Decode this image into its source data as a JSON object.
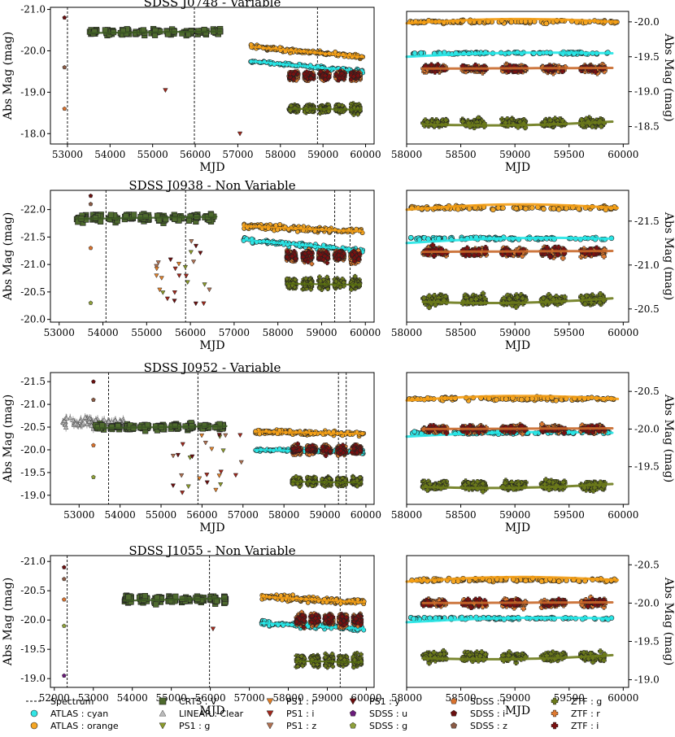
{
  "legend": [
    {
      "label": "Spectrum",
      "marker": "dashed",
      "color": "#000000"
    },
    {
      "label": "ATLAS : cyan",
      "marker": "circle",
      "color": "#33e6e6"
    },
    {
      "label": "ATLAS : orange",
      "marker": "circle",
      "color": "#f5a623"
    },
    {
      "label": "CRTS : V",
      "marker": "square",
      "color": "#4e6a2e"
    },
    {
      "label": "LINEAR : Clear",
      "marker": "triangle-up",
      "color": "#bbbbbb"
    },
    {
      "label": "PS1 : g",
      "marker": "triangle-down",
      "color": "#8b9a2a"
    },
    {
      "label": "PS1 : r",
      "marker": "triangle-down",
      "color": "#e0802a"
    },
    {
      "label": "PS1 : i",
      "marker": "triangle-down",
      "color": "#a0281c"
    },
    {
      "label": "PS1 : z",
      "marker": "triangle-down",
      "color": "#b07050"
    },
    {
      "label": "PS1 : y",
      "marker": "triangle-down",
      "color": "#6a0d0d"
    },
    {
      "label": "SDSS : u",
      "marker": "pentagon",
      "color": "#6a1b7a"
    },
    {
      "label": "SDSS : g",
      "marker": "pentagon",
      "color": "#8ea03a"
    },
    {
      "label": "SDSS : r",
      "marker": "pentagon",
      "color": "#d8722e"
    },
    {
      "label": "SDSS : i",
      "marker": "pentagon",
      "color": "#6a1010"
    },
    {
      "label": "SDSS : z",
      "marker": "pentagon",
      "color": "#8a5a44"
    },
    {
      "label": "ZTF : g",
      "marker": "plus",
      "color": "#6b7a1a"
    },
    {
      "label": "ZTF : r",
      "marker": "plus",
      "color": "#e07a30"
    },
    {
      "label": "ZTF : i",
      "marker": "plus",
      "color": "#7a1010"
    }
  ],
  "chart_data": [
    {
      "type": "scatter",
      "title": "SDSS J0748 - Variable",
      "left": {
        "xlabel": "MJD",
        "ylabel": "Abs Mag (mag)",
        "xlim": [
          52600,
          60200
        ],
        "ylim": [
          -17.75,
          -21.05
        ],
        "xticks": [
          53000,
          54000,
          55000,
          56000,
          57000,
          58000,
          59000,
          60000
        ],
        "yticks": [
          -18.0,
          -19.0,
          -20.0,
          -21.0
        ],
        "spectra": [
          53000,
          55980,
          58870
        ],
        "sdss": [
          52930,
          -20.8,
          -19.6,
          -18.6
        ],
        "crts": {
          "x0": 53500,
          "x1": 56600,
          "level": -20.45
        },
        "ps1": [
          [
            55300,
            -19.05,
            "PS1 : i"
          ],
          [
            57050,
            -18.0,
            "PS1 : i"
          ]
        ],
        "atlas_orange": {
          "x0": 57300,
          "x1": 59950,
          "y0": -20.1,
          "y1": -19.85
        },
        "atlas_cyan": {
          "x0": 57300,
          "x1": 59950,
          "y0": -19.75,
          "y1": -19.5
        },
        "ztf_r": {
          "x0": 58200,
          "x1": 59900,
          "level": -19.4
        },
        "ztf_g": {
          "x0": 58200,
          "x1": 59900,
          "level": -18.6
        }
      },
      "right": {
        "xlabel": "MJD",
        "ylabel": "Abs Mag (mag)",
        "xlim": [
          58000,
          60050
        ],
        "ylim": [
          -18.25,
          -20.15
        ],
        "xticks": [
          58000,
          58500,
          59000,
          59500,
          60000
        ],
        "yticks": [
          -18.5,
          -19.0,
          -19.5,
          -20.0
        ],
        "ztf_g": -18.55,
        "ztf_r": -19.33,
        "atlas_cyan": -19.55,
        "atlas_orange": -20.0
      }
    },
    {
      "type": "scatter",
      "title": "SDSS J0938 - Non Variable",
      "left": {
        "xlabel": "MJD",
        "ylabel": "Abs Mag (mag)",
        "xlim": [
          52800,
          60200
        ],
        "ylim": [
          -19.95,
          -22.35
        ],
        "xticks": [
          53000,
          54000,
          55000,
          56000,
          57000,
          58000,
          59000,
          60000
        ],
        "yticks": [
          -20.0,
          -20.5,
          -21.0,
          -21.5,
          -22.0
        ],
        "spectra": [
          54070,
          55890,
          59300,
          59650
        ],
        "sdss": [
          53720,
          -22.25,
          -22.1,
          -21.3,
          -20.3
        ],
        "crts": {
          "x0": 53400,
          "x1": 56600,
          "level": -21.85
        },
        "ps1_range": [
          55200,
          56500,
          -21.5,
          -20.2
        ],
        "atlas_orange": {
          "x0": 57200,
          "x1": 59950,
          "y0": -21.7,
          "y1": -21.6
        },
        "atlas_cyan": {
          "x0": 57200,
          "x1": 59950,
          "y0": -21.45,
          "y1": -21.25
        },
        "ztf_r": {
          "x0": 58200,
          "x1": 59900,
          "level": -21.15
        },
        "ztf_g": {
          "x0": 58200,
          "x1": 59900,
          "level": -20.65
        }
      },
      "right": {
        "xlabel": "MJD",
        "ylabel": "Abs Mag (mag)",
        "xlim": [
          58000,
          60050
        ],
        "ylim": [
          -20.35,
          -21.85
        ],
        "xticks": [
          58000,
          58500,
          59000,
          59500,
          60000
        ],
        "yticks": [
          -20.5,
          -21.0,
          -21.5
        ],
        "ztf_g": -20.6,
        "ztf_r": -21.15,
        "atlas_cyan": -21.3,
        "atlas_orange": -21.65
      }
    },
    {
      "type": "scatter",
      "title": "SDSS J0952 - Variable",
      "left": {
        "xlabel": "MJD",
        "ylabel": "Abs Mag (mag)",
        "xlim": [
          52300,
          60200
        ],
        "ylim": [
          -18.8,
          -21.7
        ],
        "xticks": [
          53000,
          54000,
          55000,
          56000,
          57000,
          58000,
          59000,
          60000
        ],
        "yticks": [
          -19.0,
          -19.5,
          -20.0,
          -20.5,
          -21.0,
          -21.5
        ],
        "spectra": [
          53720,
          55900,
          59330,
          59520
        ],
        "sdss": [
          53350,
          -21.5,
          -21.1,
          -20.1,
          -19.4
        ],
        "linear": {
          "x0": 52600,
          "x1": 54100,
          "level": -20.6
        },
        "crts": {
          "x0": 53400,
          "x1": 56600,
          "level": -20.5
        },
        "ps1_range": [
          55200,
          57000,
          -20.4,
          -19.0
        ],
        "atlas_orange": {
          "x0": 57300,
          "x1": 59950,
          "y0": -20.4,
          "y1": -20.35
        },
        "atlas_cyan": {
          "x0": 57300,
          "x1": 59950,
          "y0": -20.0,
          "y1": -19.95
        },
        "ztf_r": {
          "x0": 58200,
          "x1": 59900,
          "level": -20.0
        },
        "ztf_g": {
          "x0": 58200,
          "x1": 59900,
          "level": -19.3
        }
      },
      "right": {
        "xlabel": "MJD",
        "ylabel": "Abs Mag (mag)",
        "xlim": [
          58000,
          60050
        ],
        "ylim": [
          -19.0,
          -20.75
        ],
        "xticks": [
          58000,
          58500,
          59000,
          59500,
          60000
        ],
        "yticks": [
          -19.5,
          -20.0,
          -20.5
        ],
        "ztf_g": -19.25,
        "ztf_r": -20.0,
        "atlas_cyan": -19.95,
        "atlas_orange": -20.4
      }
    },
    {
      "type": "scatter",
      "title": "SDSS J1055 - Non Variable",
      "left": {
        "xlabel": "MJD",
        "ylabel": "Abs Mag (mag)",
        "xlim": [
          51900,
          60200
        ],
        "ylim": [
          -18.85,
          -21.1
        ],
        "xticks": [
          52000,
          53000,
          54000,
          55000,
          56000,
          57000,
          58000,
          59000,
          60000
        ],
        "yticks": [
          -19.0,
          -19.5,
          -20.0,
          -20.5,
          -21.0
        ],
        "spectra": [
          52330,
          55980,
          59330
        ],
        "sdss": [
          52250,
          -20.9,
          -20.7,
          -20.35,
          -19.9,
          -19.05
        ],
        "crts": {
          "x0": 53800,
          "x1": 56400,
          "level": -20.35
        },
        "ps1": [
          [
            56070,
            -19.85,
            "PS1 : i"
          ]
        ],
        "atlas_orange": {
          "x0": 57300,
          "x1": 59950,
          "y0": -20.4,
          "y1": -20.3
        },
        "atlas_cyan": {
          "x0": 57300,
          "x1": 59950,
          "y0": -19.95,
          "y1": -19.85
        },
        "ztf_r": {
          "x0": 58200,
          "x1": 59900,
          "level": -20.0
        },
        "ztf_g": {
          "x0": 58200,
          "x1": 59900,
          "level": -19.3
        }
      },
      "right": {
        "xlabel": "MJD",
        "ylabel": "Abs Mag (mag)",
        "xlim": [
          58000,
          60050
        ],
        "ylim": [
          -18.9,
          -20.62
        ],
        "xticks": [
          58000,
          58500,
          59000,
          59500,
          60000
        ],
        "yticks": [
          -19.0,
          -19.5,
          -20.0,
          -20.5
        ],
        "ztf_g": -19.3,
        "ztf_r": -20.0,
        "atlas_cyan": -19.8,
        "atlas_orange": -20.3
      }
    }
  ]
}
